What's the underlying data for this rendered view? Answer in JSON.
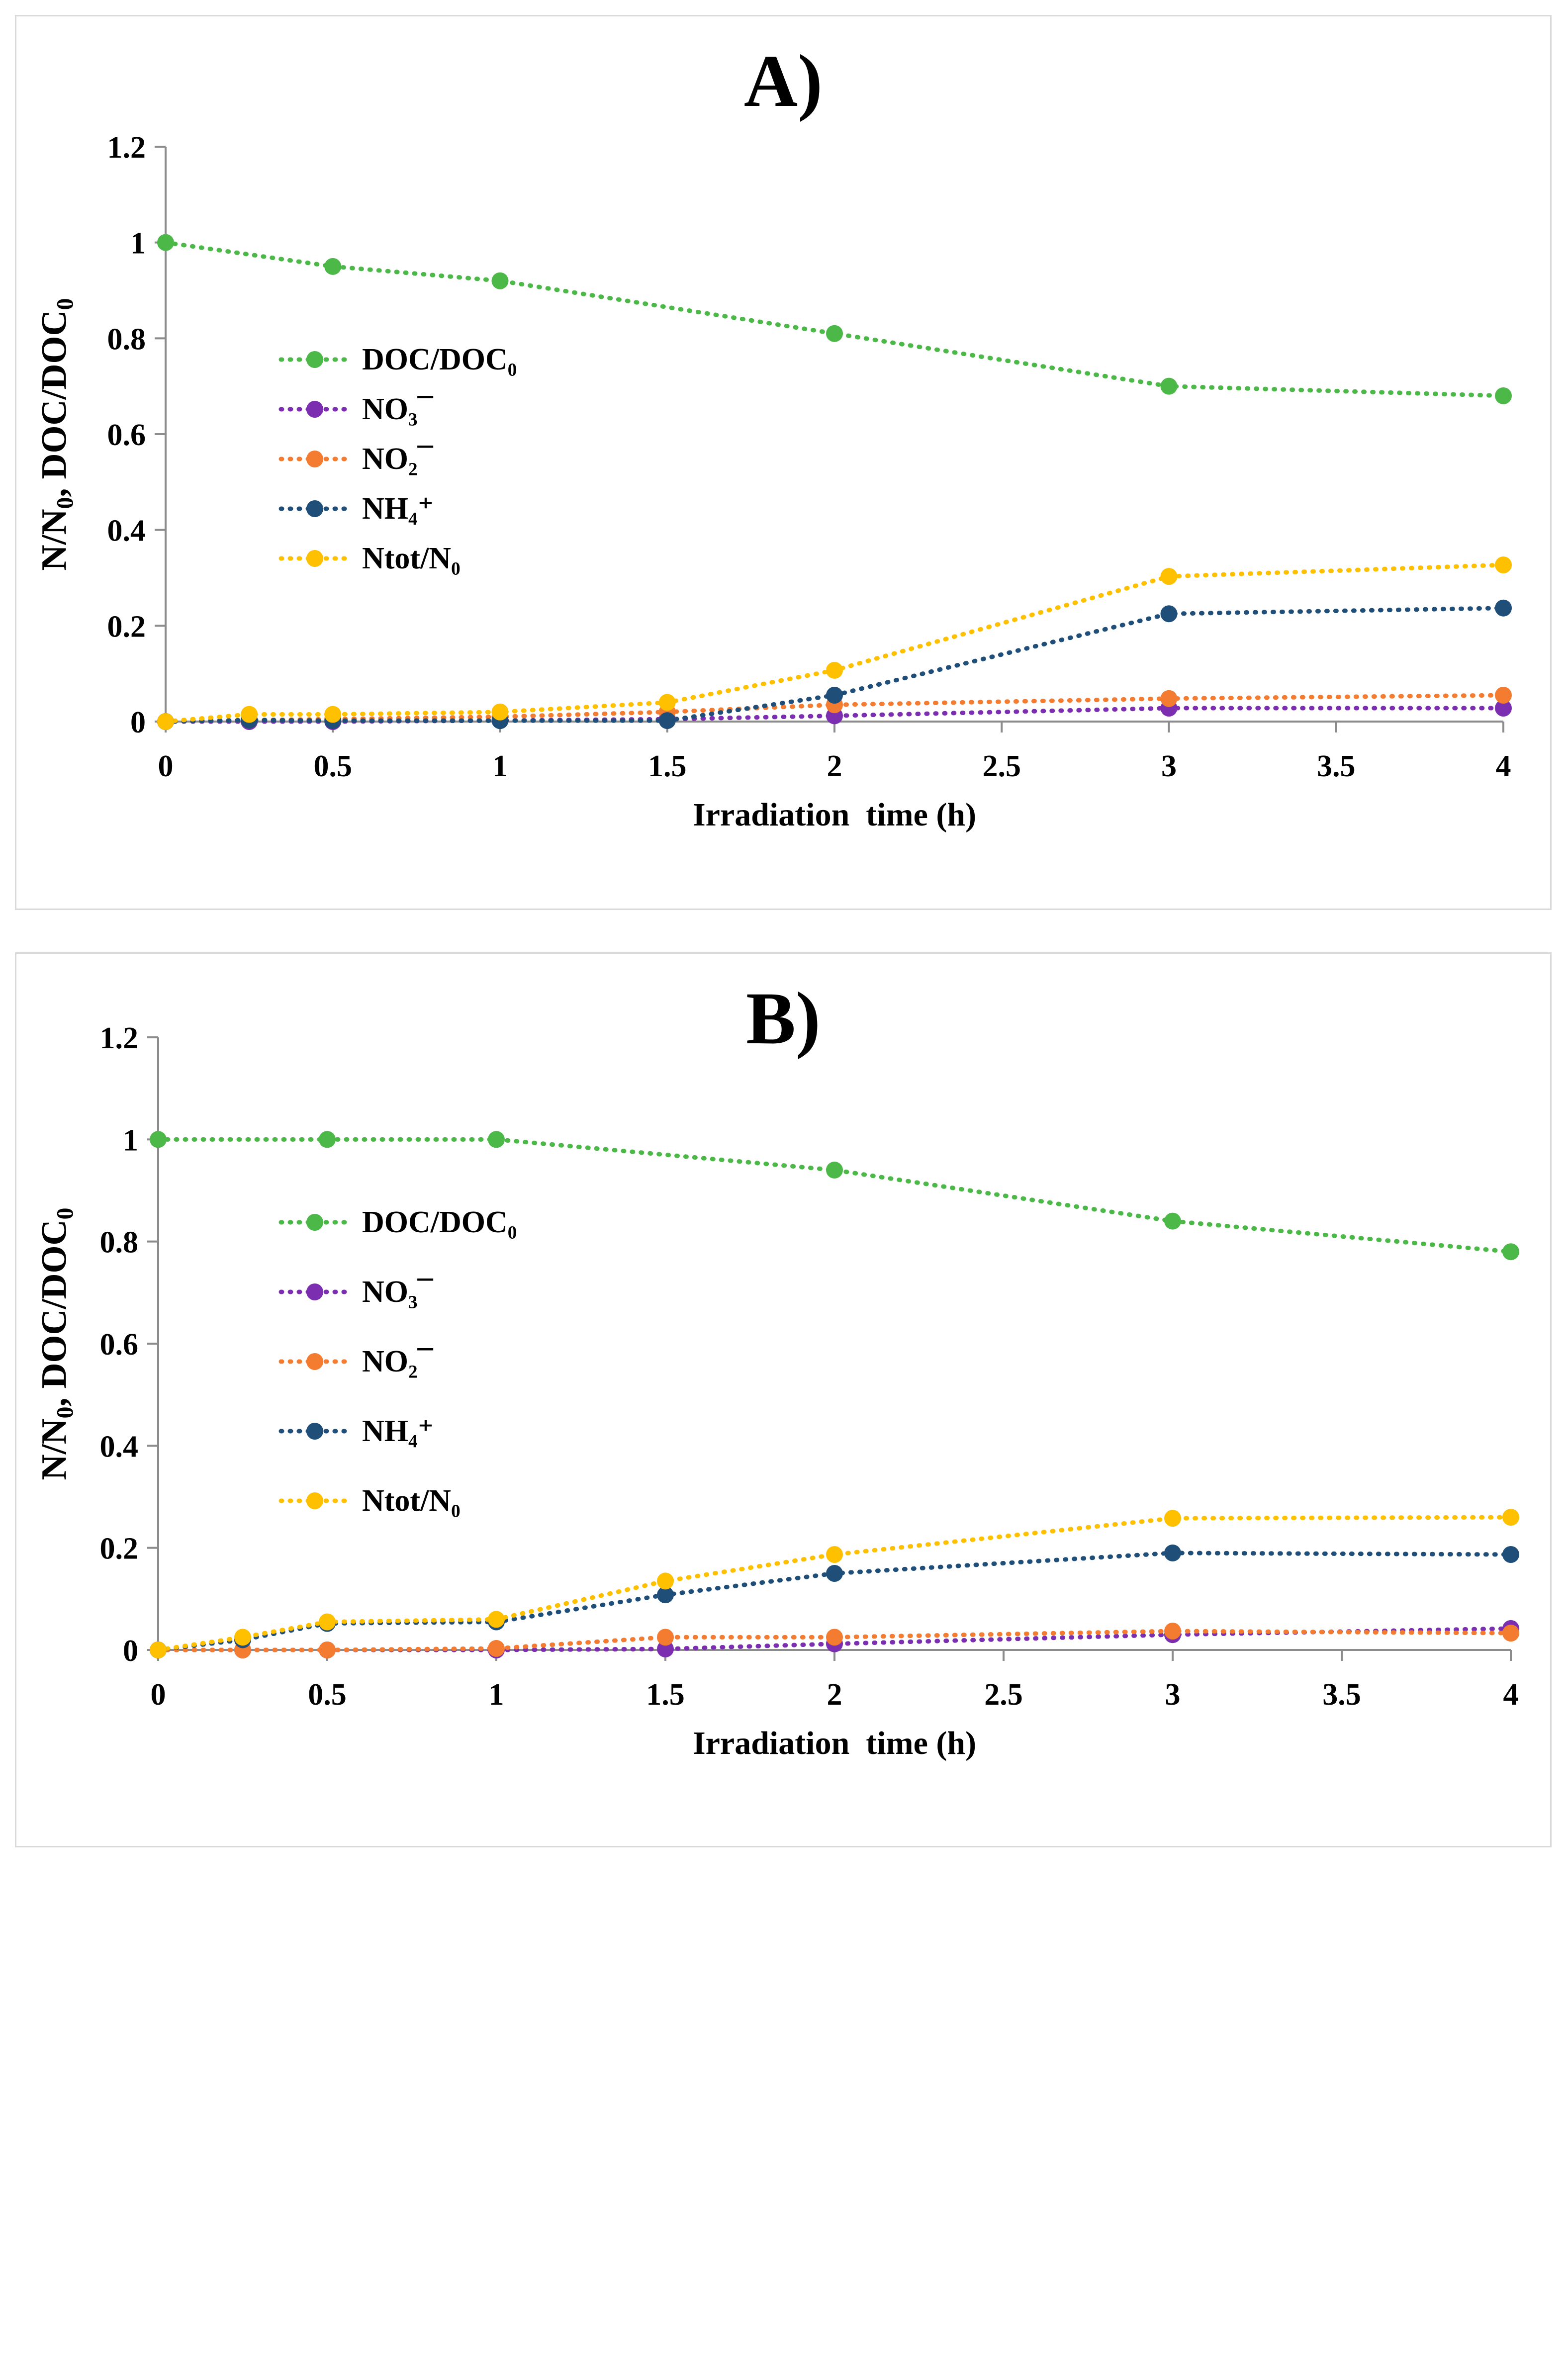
{
  "chart_data": [
    {
      "type": "line",
      "title": "A)",
      "ylabel_main": "N/N",
      "ylabel_sub1": "0",
      "ylabel_mid": ", DOC/DOC",
      "ylabel_sub2": "0",
      "xlabel": "Irradiation  time (h)",
      "xlim": [
        0,
        4
      ],
      "ylim": [
        0,
        1.2
      ],
      "x_ticks": [
        "0",
        "0.5",
        "1",
        "1.5",
        "2",
        "2.5",
        "3",
        "3.5",
        "4"
      ],
      "y_ticks": [
        "0",
        "0.2",
        "0.4",
        "0.6",
        "0.8",
        "1",
        "1.2"
      ],
      "grid": false,
      "legend_position": "center-left",
      "series": [
        {
          "name": "DOC/DOC₀",
          "color": "#4cb848",
          "x": [
            0,
            0.5,
            1,
            2,
            3,
            4
          ],
          "y": [
            1.0,
            0.95,
            0.92,
            0.81,
            0.7,
            0.68
          ]
        },
        {
          "name": "NO₃¯",
          "color": "#7b2fb0",
          "x": [
            0,
            0.25,
            0.5,
            1,
            1.5,
            2,
            3,
            4
          ],
          "y": [
            0.0,
            0.0,
            0.0,
            0.002,
            0.005,
            0.012,
            0.028,
            0.028
          ]
        },
        {
          "name": "NO₂¯",
          "color": "#f47c31",
          "x": [
            0,
            0.25,
            0.5,
            1,
            1.5,
            2,
            3,
            4
          ],
          "y": [
            0.0,
            0.003,
            0.005,
            0.01,
            0.02,
            0.035,
            0.048,
            0.055
          ]
        },
        {
          "name": "NH₄⁺",
          "color": "#1f4e79",
          "x": [
            0,
            0.25,
            0.5,
            1,
            1.5,
            2,
            3,
            4
          ],
          "y": [
            0.0,
            0.003,
            0.002,
            0.002,
            0.002,
            0.055,
            0.225,
            0.237
          ]
        },
        {
          "name": "Ntot/N₀",
          "color": "#ffc000",
          "x": [
            0,
            0.25,
            0.5,
            1,
            1.5,
            2,
            3,
            4
          ],
          "y": [
            0.0,
            0.015,
            0.015,
            0.02,
            0.04,
            0.107,
            0.303,
            0.327
          ]
        }
      ]
    },
    {
      "type": "line",
      "title": "B)",
      "ylabel_main": "N/N",
      "ylabel_sub1": "0",
      "ylabel_mid": ", DOC/DOC",
      "ylabel_sub2": "0",
      "xlabel": "Irradiation  time (h)",
      "xlim": [
        0,
        4
      ],
      "ylim": [
        0,
        1.2
      ],
      "x_ticks": [
        "0",
        "0.5",
        "1",
        "1.5",
        "2",
        "2.5",
        "3",
        "3.5",
        "4"
      ],
      "y_ticks": [
        "0",
        "0.2",
        "0.4",
        "0.6",
        "0.8",
        "1",
        "1.2"
      ],
      "grid": false,
      "legend_position": "center-left",
      "series": [
        {
          "name": "DOC/DOC₀",
          "color": "#4cb848",
          "x": [
            0,
            0.5,
            1,
            2,
            3,
            4
          ],
          "y": [
            1.0,
            1.0,
            1.0,
            0.94,
            0.84,
            0.78
          ]
        },
        {
          "name": "NO₃¯",
          "color": "#7b2fb0",
          "x": [
            0,
            0.25,
            0.5,
            1,
            1.5,
            2,
            3,
            4
          ],
          "y": [
            0.0,
            0.0,
            0.0,
            0.0,
            0.002,
            0.012,
            0.03,
            0.042
          ]
        },
        {
          "name": "NO₂¯",
          "color": "#f47c31",
          "x": [
            0,
            0.25,
            0.5,
            1,
            1.5,
            2,
            3,
            4
          ],
          "y": [
            0.0,
            0.0,
            0.0,
            0.003,
            0.025,
            0.025,
            0.037,
            0.033
          ]
        },
        {
          "name": "NH₄⁺",
          "color": "#1f4e79",
          "x": [
            0,
            0.25,
            0.5,
            1,
            1.5,
            2,
            3,
            4
          ],
          "y": [
            0.0,
            0.02,
            0.052,
            0.055,
            0.108,
            0.15,
            0.19,
            0.187
          ]
        },
        {
          "name": "Ntot/N₀",
          "color": "#ffc000",
          "x": [
            0,
            0.25,
            0.5,
            1,
            1.5,
            2,
            3,
            4
          ],
          "y": [
            0.0,
            0.025,
            0.055,
            0.06,
            0.135,
            0.187,
            0.258,
            0.26
          ]
        }
      ]
    }
  ]
}
